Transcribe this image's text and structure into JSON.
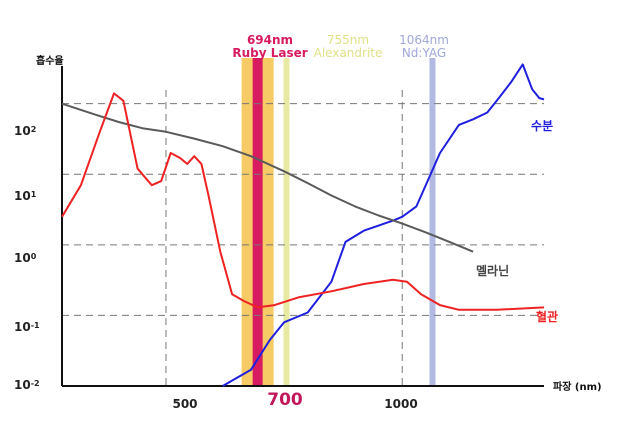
{
  "chart_data": {
    "type": "line",
    "xlabel": "파장 (nm)",
    "ylabel": "흡수율",
    "yscale": "log",
    "xlim": [
      280,
      1300
    ],
    "ylim": [
      0.01,
      300
    ],
    "x_ticks": [
      {
        "value": 500,
        "label": "500"
      },
      {
        "value": 700,
        "label": "700"
      },
      {
        "value": 1000,
        "label": "1000"
      }
    ],
    "y_ticks": [
      {
        "value": 100,
        "base": "10",
        "exp": "2"
      },
      {
        "value": 10,
        "base": "10",
        "exp": "1"
      },
      {
        "value": 1,
        "base": "10",
        "exp": "0"
      },
      {
        "value": 0.1,
        "base": "10",
        "exp": "-1"
      },
      {
        "value": 0.01,
        "base": "10",
        "exp": "-2"
      }
    ],
    "grid": "dashed",
    "lasers": [
      {
        "wavelength": 694,
        "wl_label": "694nm",
        "name": "Ruby Laser",
        "color": "#d81b60",
        "band_color": "#f4c24a"
      },
      {
        "wavelength": 755,
        "wl_label": "755nm",
        "name": "Alexandrite",
        "color": "#e6e89a"
      },
      {
        "wavelength": 1064,
        "wl_label": "1064nm",
        "name": "Nd:YAG",
        "color": "#aab2e0"
      }
    ],
    "series": [
      {
        "name": "수분",
        "color": "#1f1fe0",
        "points": [
          [
            620,
            0.01
          ],
          [
            680,
            0.017
          ],
          [
            720,
            0.045
          ],
          [
            750,
            0.08
          ],
          [
            800,
            0.11
          ],
          [
            850,
            0.3
          ],
          [
            880,
            1.1
          ],
          [
            920,
            1.6
          ],
          [
            980,
            2.2
          ],
          [
            1000,
            2.5
          ],
          [
            1030,
            3.5
          ],
          [
            1080,
            20
          ],
          [
            1120,
            50
          ],
          [
            1150,
            60
          ],
          [
            1180,
            75
          ],
          [
            1200,
            110
          ],
          [
            1230,
            200
          ],
          [
            1255,
            360
          ],
          [
            1275,
            160
          ],
          [
            1290,
            120
          ],
          [
            1300,
            115
          ]
        ]
      },
      {
        "name": "멜라닌",
        "color": "#5a5a5a",
        "points": [
          [
            280,
            100
          ],
          [
            350,
            70
          ],
          [
            400,
            55
          ],
          [
            450,
            45
          ],
          [
            500,
            40
          ],
          [
            560,
            32
          ],
          [
            620,
            25
          ],
          [
            680,
            18
          ],
          [
            750,
            11
          ],
          [
            800,
            7.5
          ],
          [
            850,
            5
          ],
          [
            900,
            3.5
          ],
          [
            950,
            2.6
          ],
          [
            1000,
            2
          ],
          [
            1050,
            1.5
          ],
          [
            1100,
            1.1
          ],
          [
            1150,
            0.8
          ]
        ]
      },
      {
        "name": "혈관",
        "color": "#ee2222",
        "points": [
          [
            280,
            2.5
          ],
          [
            320,
            7
          ],
          [
            360,
            40
          ],
          [
            390,
            140
          ],
          [
            410,
            110
          ],
          [
            440,
            12
          ],
          [
            470,
            7
          ],
          [
            490,
            8
          ],
          [
            510,
            20
          ],
          [
            530,
            17
          ],
          [
            545,
            14
          ],
          [
            560,
            18
          ],
          [
            575,
            14
          ],
          [
            590,
            5
          ],
          [
            615,
            0.8
          ],
          [
            640,
            0.2
          ],
          [
            665,
            0.16
          ],
          [
            694,
            0.13
          ],
          [
            730,
            0.14
          ],
          [
            780,
            0.18
          ],
          [
            850,
            0.22
          ],
          [
            920,
            0.28
          ],
          [
            980,
            0.32
          ],
          [
            1010,
            0.3
          ],
          [
            1040,
            0.2
          ],
          [
            1080,
            0.14
          ],
          [
            1120,
            0.12
          ],
          [
            1200,
            0.12
          ],
          [
            1300,
            0.13
          ]
        ]
      }
    ]
  }
}
